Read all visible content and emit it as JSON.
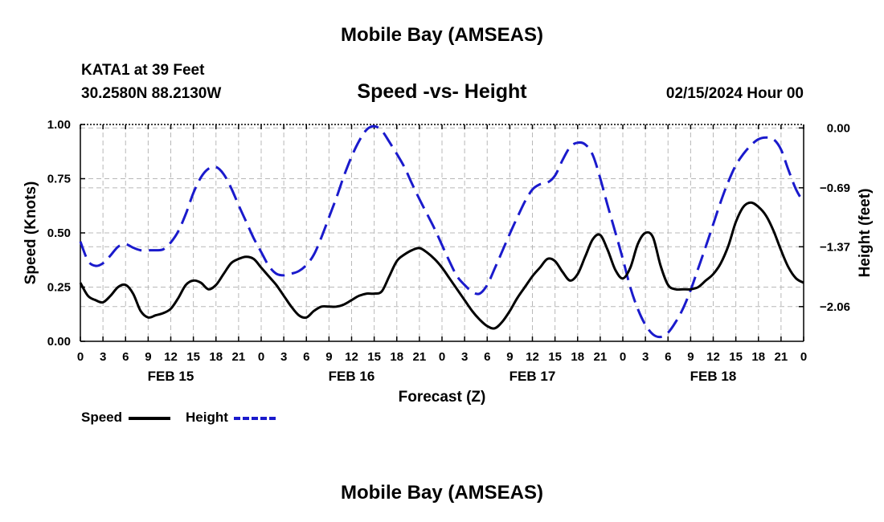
{
  "header": {
    "title": "Mobile Bay (AMSEAS)",
    "station": "KATA1 at 39 Feet",
    "coords": "30.2580N  88.2130W",
    "subtitle": "Speed -vs- Height",
    "datetime": "02/15/2024 Hour 00"
  },
  "footer": {
    "title": "Mobile Bay (AMSEAS)"
  },
  "legend": {
    "speed_label": "Speed",
    "height_label": "Height"
  },
  "colors": {
    "speed": "#000000",
    "height": "#1a1acc",
    "grid": "#b8b8b8"
  },
  "chart_data": {
    "type": "line",
    "title": "Speed -vs- Height",
    "xlabel": "Forecast (Z)",
    "ylabel_left": "Speed (Knots)",
    "ylabel_right": "Height (feet)",
    "x_unit": "hours from 02/15/2024 00Z",
    "xlim": [
      0,
      96
    ],
    "ylim_left": [
      0,
      1
    ],
    "ylim_right": [
      -2.46,
      0.04
    ],
    "x_ticks": [
      0,
      3,
      6,
      9,
      12,
      15,
      18,
      21,
      24,
      27,
      30,
      33,
      36,
      39,
      42,
      45,
      48,
      51,
      54,
      57,
      60,
      63,
      66,
      69,
      72,
      75,
      78,
      81,
      84,
      87,
      90,
      93,
      96
    ],
    "x_tick_labels": [
      "0",
      "3",
      "6",
      "9",
      "12",
      "15",
      "18",
      "21",
      "0",
      "3",
      "6",
      "9",
      "12",
      "15",
      "18",
      "21",
      "0",
      "3",
      "6",
      "9",
      "12",
      "15",
      "18",
      "21",
      "0",
      "3",
      "6",
      "9",
      "12",
      "15",
      "18",
      "21",
      "0"
    ],
    "day_labels": [
      {
        "x": 12,
        "label": "FEB 15"
      },
      {
        "x": 36,
        "label": "FEB 16"
      },
      {
        "x": 60,
        "label": "FEB 17"
      },
      {
        "x": 84,
        "label": "FEB 18"
      }
    ],
    "left_ticks": [
      0.0,
      0.25,
      0.5,
      0.75,
      1.0
    ],
    "left_tick_labels": [
      "0.00",
      "0.25",
      "0.50",
      "0.75",
      "1.00"
    ],
    "right_ticks": [
      0.0,
      -0.69,
      -1.37,
      -2.06
    ],
    "right_tick_labels": [
      "0.00",
      "−0.69",
      "−1.37",
      "−2.06"
    ],
    "grid": true,
    "series": [
      {
        "name": "Speed",
        "axis": "left",
        "style": "solid",
        "x": [
          0,
          1,
          2,
          3,
          4,
          5,
          6,
          7,
          8,
          9,
          10,
          11,
          12,
          13,
          14,
          15,
          16,
          17,
          18,
          19,
          20,
          21,
          22,
          23,
          24,
          25,
          26,
          27,
          28,
          29,
          30,
          31,
          32,
          33,
          34,
          35,
          36,
          37,
          38,
          39,
          40,
          41,
          42,
          43,
          44,
          45,
          46,
          47,
          48,
          49,
          50,
          51,
          52,
          53,
          54,
          55,
          56,
          57,
          58,
          59,
          60,
          61,
          62,
          63,
          64,
          65,
          66,
          67,
          68,
          69,
          70,
          71,
          72,
          73,
          74,
          75,
          76,
          77,
          78,
          79,
          80,
          81,
          82,
          83,
          84,
          85,
          86,
          87,
          88,
          89,
          90,
          91,
          92,
          93,
          94,
          95,
          96
        ],
        "values": [
          0.27,
          0.21,
          0.19,
          0.18,
          0.21,
          0.25,
          0.26,
          0.22,
          0.14,
          0.11,
          0.12,
          0.13,
          0.15,
          0.2,
          0.26,
          0.28,
          0.27,
          0.24,
          0.26,
          0.31,
          0.36,
          0.38,
          0.39,
          0.38,
          0.34,
          0.3,
          0.26,
          0.21,
          0.16,
          0.12,
          0.11,
          0.14,
          0.16,
          0.16,
          0.16,
          0.17,
          0.19,
          0.21,
          0.22,
          0.22,
          0.23,
          0.3,
          0.37,
          0.4,
          0.42,
          0.43,
          0.41,
          0.38,
          0.34,
          0.29,
          0.24,
          0.19,
          0.14,
          0.1,
          0.07,
          0.06,
          0.09,
          0.14,
          0.2,
          0.25,
          0.3,
          0.34,
          0.38,
          0.37,
          0.32,
          0.28,
          0.31,
          0.39,
          0.47,
          0.49,
          0.42,
          0.33,
          0.29,
          0.34,
          0.45,
          0.5,
          0.48,
          0.35,
          0.26,
          0.24,
          0.24,
          0.24,
          0.25,
          0.28,
          0.31,
          0.36,
          0.44,
          0.55,
          0.62,
          0.64,
          0.62,
          0.58,
          0.51,
          0.42,
          0.34,
          0.29,
          0.27
        ]
      },
      {
        "name": "Height",
        "axis": "right",
        "style": "dashed",
        "x": [
          0,
          1,
          2,
          3,
          4,
          5,
          6,
          7,
          8,
          9,
          10,
          11,
          12,
          13,
          14,
          15,
          16,
          17,
          18,
          19,
          20,
          21,
          22,
          23,
          24,
          25,
          26,
          27,
          28,
          29,
          30,
          31,
          32,
          33,
          34,
          35,
          36,
          37,
          38,
          39,
          40,
          41,
          42,
          43,
          44,
          45,
          46,
          47,
          48,
          49,
          50,
          51,
          52,
          53,
          54,
          55,
          56,
          57,
          58,
          59,
          60,
          61,
          62,
          63,
          64,
          65,
          66,
          67,
          68,
          69,
          70,
          71,
          72,
          73,
          74,
          75,
          76,
          77,
          78,
          79,
          80,
          81,
          82,
          83,
          84,
          85,
          86,
          87,
          88,
          89,
          90,
          91,
          92,
          93,
          94,
          95,
          96
        ],
        "values": [
          -1.31,
          -1.53,
          -1.59,
          -1.56,
          -1.47,
          -1.37,
          -1.34,
          -1.38,
          -1.41,
          -1.41,
          -1.41,
          -1.4,
          -1.32,
          -1.19,
          -0.99,
          -0.75,
          -0.57,
          -0.47,
          -0.45,
          -0.53,
          -0.69,
          -0.89,
          -1.08,
          -1.27,
          -1.43,
          -1.59,
          -1.68,
          -1.7,
          -1.68,
          -1.65,
          -1.58,
          -1.46,
          -1.26,
          -1.03,
          -0.8,
          -0.55,
          -0.33,
          -0.15,
          -0.02,
          0.02,
          -0.03,
          -0.16,
          -0.3,
          -0.45,
          -0.64,
          -0.82,
          -0.99,
          -1.16,
          -1.35,
          -1.54,
          -1.71,
          -1.81,
          -1.89,
          -1.91,
          -1.81,
          -1.62,
          -1.42,
          -1.22,
          -1.03,
          -0.85,
          -0.71,
          -0.65,
          -0.63,
          -0.55,
          -0.37,
          -0.22,
          -0.17,
          -0.19,
          -0.31,
          -0.58,
          -0.9,
          -1.2,
          -1.51,
          -1.84,
          -2.09,
          -2.27,
          -2.38,
          -2.41,
          -2.36,
          -2.24,
          -2.08,
          -1.87,
          -1.62,
          -1.37,
          -1.11,
          -0.85,
          -0.62,
          -0.43,
          -0.3,
          -0.2,
          -0.13,
          -0.11,
          -0.13,
          -0.25,
          -0.49,
          -0.71,
          -0.86
        ]
      }
    ]
  }
}
